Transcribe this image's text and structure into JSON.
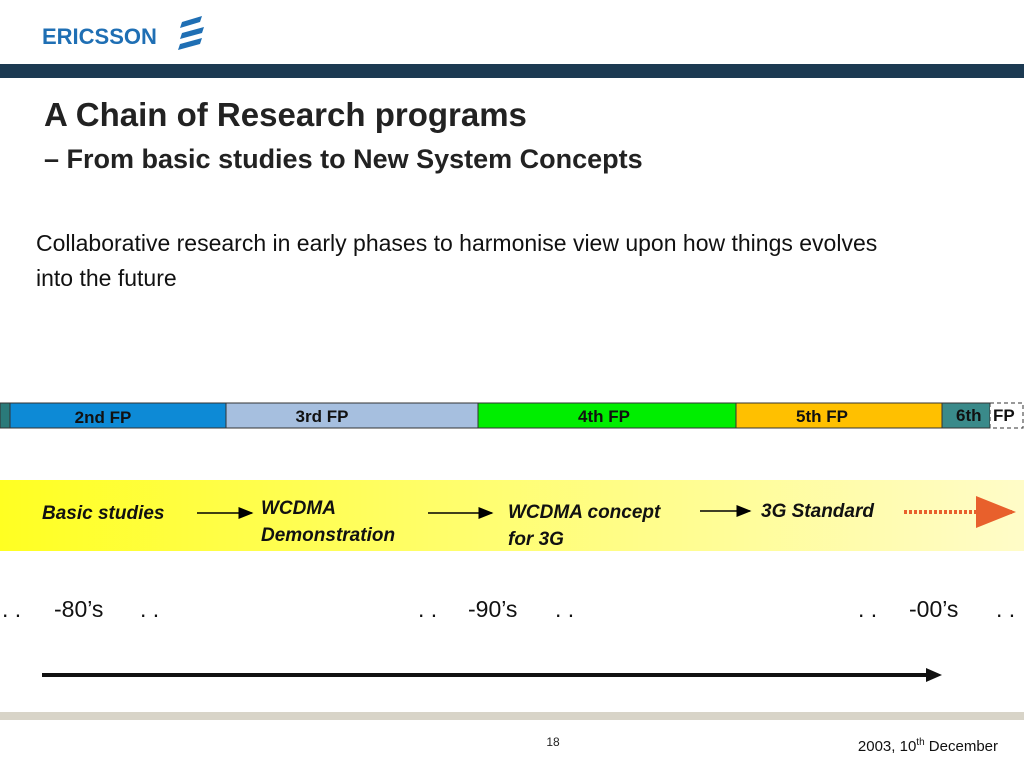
{
  "header": {
    "logo": "ERICSSON",
    "title": "A Chain of Research programs",
    "subtitle": "– From basic studies to New System Concepts"
  },
  "body": "Collaborative research in early phases to harmonise view upon how things evolves into the future",
  "programs": [
    "2nd FP",
    "3rd FP",
    "4th FP",
    "5th FP",
    "6th",
    "FP"
  ],
  "flow": [
    "Basic studies",
    "WCDMA",
    "Demonstration",
    "WCDMA concept",
    "for 3G",
    "3G Standard"
  ],
  "eras": [
    ". .",
    "-80’s",
    ". .",
    ". .",
    "-90’s",
    ". .",
    ". .",
    "-00’s",
    ". ."
  ],
  "footer": {
    "page": "18",
    "date": "2003, 10",
    "date_sup": "th",
    "date_end": " December"
  }
}
